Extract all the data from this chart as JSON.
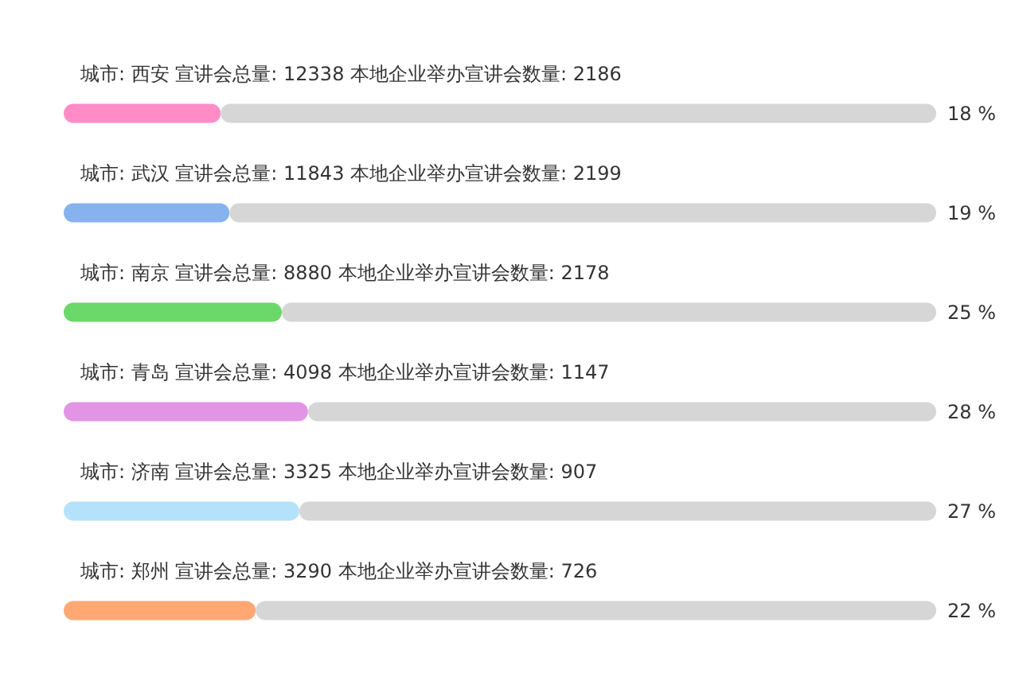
{
  "chart_data": {
    "type": "bar",
    "orientation": "horizontal",
    "stacked": true,
    "categories": [
      "城市: 西安 宣讲会总量: 12338 本地企业举办宣讲会数量: 2186",
      "城市: 武汉 宣讲会总量: 11843 本地企业举办宣讲会数量: 2199",
      "城市: 南京 宣讲会总量: 8880 本地企业举办宣讲会数量: 2178",
      "城市: 青岛 宣讲会总量: 4098 本地企业举办宣讲会数量: 1147",
      "城市: 济南 宣讲会总量: 3325 本地企业举办宣讲会数量: 907",
      "城市: 郑州 宣讲会总量: 3290 本地企业举办宣讲会数量: 726"
    ],
    "series": [
      {
        "colors": [
          "#ff8cc6",
          "#86b2ee",
          "#6ad96a",
          "#e295e4",
          "#b5e2fb",
          "#ffa874"
        ],
        "values": [
          18,
          19,
          25,
          28,
          27,
          22
        ],
        "value_labels": [
          "18 %",
          "19 %",
          "25 %",
          "28 %",
          "27 %",
          "22 %"
        ]
      },
      {
        "color": "#d6d6d6",
        "values": [
          82,
          81,
          75,
          72,
          73,
          78
        ]
      }
    ]
  }
}
